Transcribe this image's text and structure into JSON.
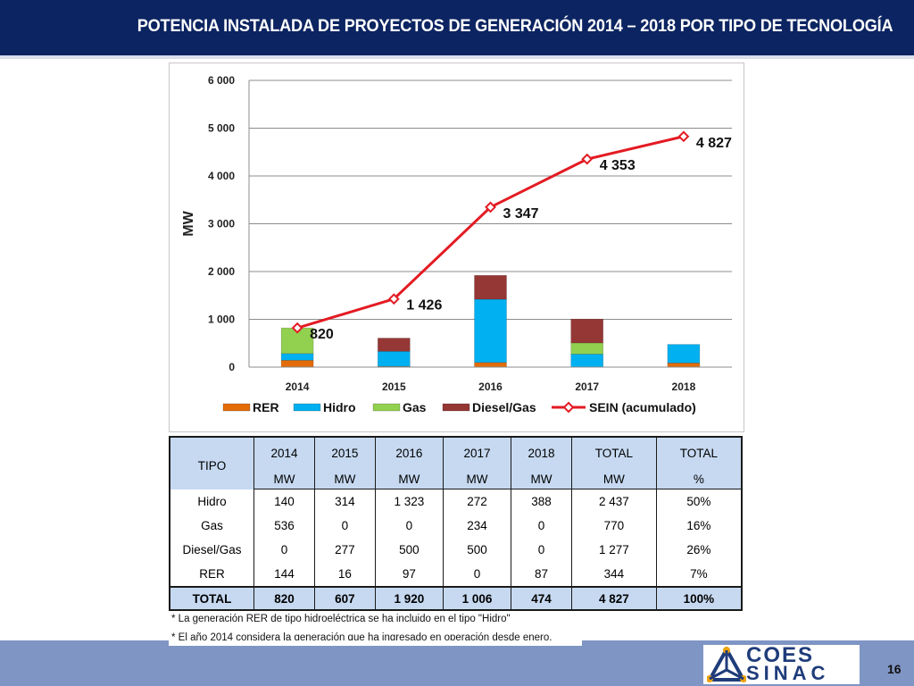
{
  "header": {
    "title": "POTENCIA INSTALADA DE PROYECTOS DE GENERACIÓN 2014 – 2018 POR TIPO DE TECNOLOGÍA"
  },
  "chart_data": {
    "type": "bar",
    "stacked": true,
    "categories": [
      "2014",
      "2015",
      "2016",
      "2017",
      "2018"
    ],
    "ylabel": "MW",
    "ylim": [
      0,
      6000
    ],
    "yticks": [
      0,
      1000,
      2000,
      3000,
      4000,
      5000,
      6000
    ],
    "ytick_labels": [
      "0",
      "1 000",
      "2 000",
      "3 000",
      "4 000",
      "5 000",
      "6 000"
    ],
    "legend_position": "bottom",
    "series": [
      {
        "name": "RER",
        "type": "bar",
        "color": "#e36c09",
        "values": [
          144,
          16,
          97,
          0,
          87
        ]
      },
      {
        "name": "Hidro",
        "type": "bar",
        "color": "#00b0f0",
        "values": [
          140,
          314,
          1323,
          272,
          388
        ]
      },
      {
        "name": "Gas",
        "type": "bar",
        "color": "#92d050",
        "values": [
          536,
          0,
          0,
          234,
          0
        ]
      },
      {
        "name": "Diesel/Gas",
        "type": "bar",
        "color": "#953735",
        "values": [
          0,
          277,
          500,
          500,
          0
        ]
      },
      {
        "name": "SEIN (acumulado)",
        "type": "line",
        "color": "#e31b23",
        "values": [
          820,
          1426,
          3347,
          4353,
          4827
        ],
        "data_labels": [
          "820",
          "1 426",
          "3 347",
          "4 353",
          "4 827"
        ]
      }
    ]
  },
  "table": {
    "header_top": [
      "TIPO",
      "2014",
      "2015",
      "2016",
      "2017",
      "2018",
      "TOTAL",
      "TOTAL"
    ],
    "header_bottom": [
      "",
      "MW",
      "MW",
      "MW",
      "MW",
      "MW",
      "MW",
      "%"
    ],
    "rows": [
      [
        "Hidro",
        "140",
        "314",
        "1 323",
        "272",
        "388",
        "2 437",
        "50%"
      ],
      [
        "Gas",
        "536",
        "0",
        "0",
        "234",
        "0",
        "770",
        "16%"
      ],
      [
        "Diesel/Gas",
        "0",
        "277",
        "500",
        "500",
        "0",
        "1 277",
        "26%"
      ],
      [
        "RER",
        "144",
        "16",
        "97",
        "0",
        "87",
        "344",
        "7%"
      ]
    ],
    "total": [
      "TOTAL",
      "820",
      "607",
      "1 920",
      "1 006",
      "474",
      "4 827",
      "100%"
    ]
  },
  "notes": [
    "* La generación RER de tipo hidroeléctrica se ha incluido en el tipo \"Hidro\"",
    "* El año 2014 considera la generación que ha ingresado en operación desde enero."
  ],
  "logo": {
    "line1": "COES",
    "line2": "SINAC"
  },
  "page_number": "16"
}
